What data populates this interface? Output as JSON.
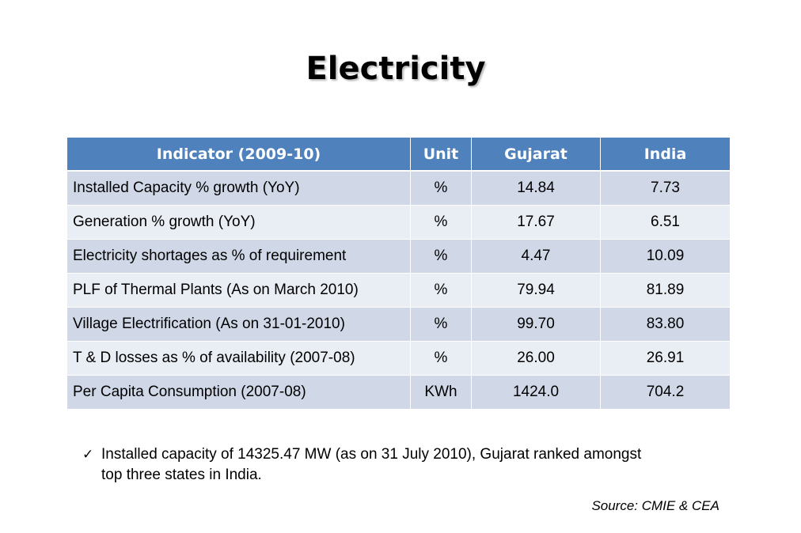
{
  "title": "Electricity",
  "table": {
    "headers": [
      "Indicator (2009-10)",
      "Unit",
      "Gujarat",
      "India"
    ],
    "rows": [
      {
        "indicator": "Installed Capacity % growth (YoY)",
        "unit": "%",
        "gujarat": "14.84",
        "india": "7.73"
      },
      {
        "indicator": "Generation % growth (YoY)",
        "unit": "%",
        "gujarat": "17.67",
        "india": "6.51"
      },
      {
        "indicator": "Electricity shortages as % of requirement",
        "unit": "%",
        "gujarat": "4.47",
        "india": "10.09"
      },
      {
        "indicator": "PLF of Thermal Plants (As on March 2010)",
        "unit": "%",
        "gujarat": "79.94",
        "india": "81.89"
      },
      {
        "indicator": "Village Electrification (As on 31-01-2010)",
        "unit": "%",
        "gujarat": "99.70",
        "india": "83.80"
      },
      {
        "indicator": "T & D losses as % of availability (2007-08)",
        "unit": "%",
        "gujarat": "26.00",
        "india": "26.91"
      },
      {
        "indicator": "Per Capita Consumption (2007-08)",
        "unit": "KWh",
        "gujarat": "1424.0",
        "india": "704.2"
      }
    ]
  },
  "note": {
    "icon": "check-icon",
    "glyph": "✓",
    "text": "Installed capacity of 14325.47 MW (as on 31 July 2010), Gujarat ranked amongst top three states in India."
  },
  "source": "Source: CMIE & CEA",
  "colors": {
    "header_bg": "#4f81bd",
    "row_odd": "#d0d8e8",
    "row_even": "#e9edf4"
  }
}
